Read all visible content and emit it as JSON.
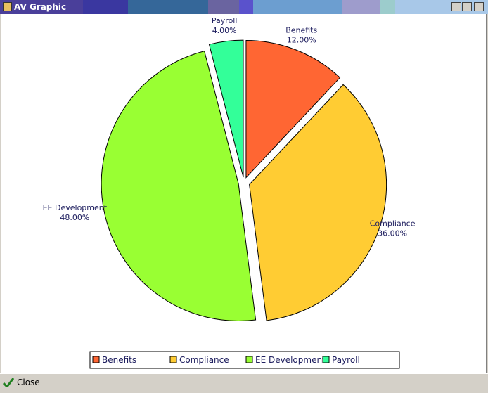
{
  "window_title": "AV Graphic",
  "close_button": "Close",
  "chart_data": {
    "type": "pie",
    "categories": [
      "Benefits",
      "Compliance",
      "EE Development",
      "Payroll"
    ],
    "values": [
      12,
      36,
      48,
      4
    ],
    "value_labels": [
      "12.00%",
      "36.00%",
      "48.00%",
      "4.00%"
    ],
    "colors": [
      "#ff6633",
      "#ffcc33",
      "#99ff33",
      "#33ff99"
    ],
    "legend": "bottom"
  }
}
